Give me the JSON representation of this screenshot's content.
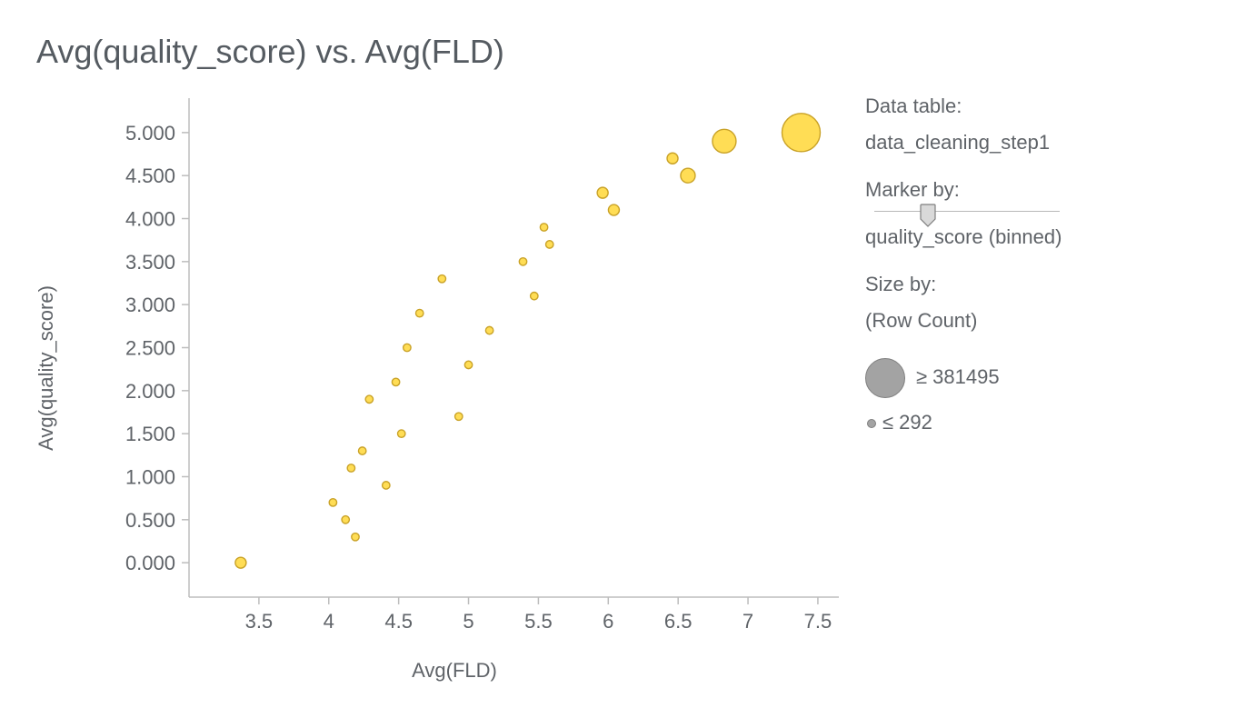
{
  "chart_data": {
    "type": "scatter",
    "title": "Avg(quality_score) vs. Avg(FLD)",
    "xlabel": "Avg(FLD)",
    "ylabel": "Avg(quality_score)",
    "xlim": [
      3.0,
      7.65
    ],
    "ylim": [
      -0.4,
      5.4
    ],
    "x_ticks": [
      "3.5",
      "4",
      "4.5",
      "5",
      "5.5",
      "6",
      "6.5",
      "7",
      "7.5"
    ],
    "x_tick_values": [
      3.5,
      4,
      4.5,
      5,
      5.5,
      6,
      6.5,
      7,
      7.5
    ],
    "y_ticks": [
      "0.000",
      "0.500",
      "1.000",
      "1.500",
      "2.000",
      "2.500",
      "3.000",
      "3.500",
      "4.000",
      "4.500",
      "5.000"
    ],
    "y_tick_values": [
      0,
      0.5,
      1,
      1.5,
      2,
      2.5,
      3,
      3.5,
      4,
      4.5,
      5
    ],
    "grid": false,
    "legend_position": "right",
    "marker_color": "#ffdd55",
    "marker_edge_color": "#c9a227",
    "points": [
      {
        "x": 3.37,
        "y": 0.0,
        "size": 2
      },
      {
        "x": 4.03,
        "y": 0.7,
        "size": 1
      },
      {
        "x": 4.12,
        "y": 0.5,
        "size": 1
      },
      {
        "x": 4.19,
        "y": 0.3,
        "size": 1
      },
      {
        "x": 4.16,
        "y": 1.1,
        "size": 1
      },
      {
        "x": 4.24,
        "y": 1.3,
        "size": 1
      },
      {
        "x": 4.29,
        "y": 1.9,
        "size": 1
      },
      {
        "x": 4.41,
        "y": 0.9,
        "size": 1
      },
      {
        "x": 4.48,
        "y": 2.1,
        "size": 1
      },
      {
        "x": 4.52,
        "y": 1.5,
        "size": 1
      },
      {
        "x": 4.56,
        "y": 2.5,
        "size": 1
      },
      {
        "x": 4.65,
        "y": 2.9,
        "size": 1
      },
      {
        "x": 4.81,
        "y": 3.3,
        "size": 1
      },
      {
        "x": 4.93,
        "y": 1.7,
        "size": 1
      },
      {
        "x": 5.0,
        "y": 2.3,
        "size": 1
      },
      {
        "x": 5.15,
        "y": 2.7,
        "size": 1
      },
      {
        "x": 5.39,
        "y": 3.5,
        "size": 1
      },
      {
        "x": 5.47,
        "y": 3.1,
        "size": 1
      },
      {
        "x": 5.54,
        "y": 3.9,
        "size": 1
      },
      {
        "x": 5.58,
        "y": 3.7,
        "size": 1
      },
      {
        "x": 5.96,
        "y": 4.3,
        "size": 2
      },
      {
        "x": 6.04,
        "y": 4.1,
        "size": 2
      },
      {
        "x": 6.46,
        "y": 4.7,
        "size": 2
      },
      {
        "x": 6.57,
        "y": 4.5,
        "size": 3
      },
      {
        "x": 6.83,
        "y": 4.9,
        "size": 6
      },
      {
        "x": 7.38,
        "y": 5.0,
        "size": 10
      }
    ]
  },
  "legend": {
    "data_table_label": "Data table:",
    "data_table_value": "data_cleaning_step1",
    "marker_by_label": "Marker by:",
    "marker_by_value": "quality_score (binned)",
    "size_by_label": "Size by:",
    "size_by_value": "(Row Count)",
    "size_max_label": "≥ 381495",
    "size_min_label": "≤ 292",
    "slider_level": 0.29
  }
}
